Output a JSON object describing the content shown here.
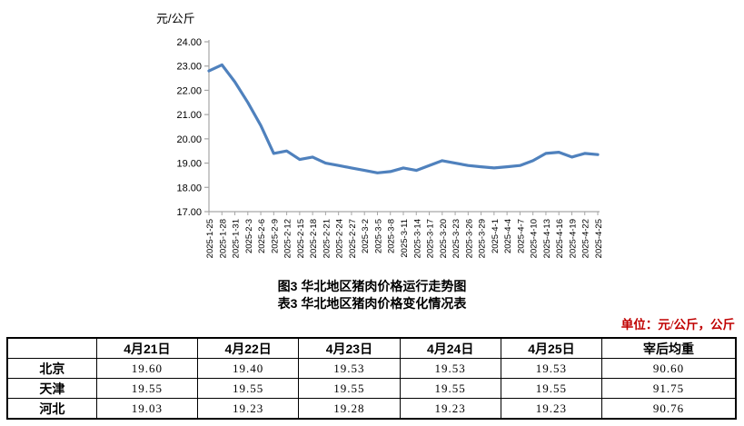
{
  "chart_data": {
    "type": "line",
    "title": "图3 华北地区猪肉价格运行走势图",
    "ylabel": "元/公斤",
    "xlabel": "",
    "ylim": [
      17.0,
      24.0
    ],
    "ytick_step": 1.0,
    "grid": false,
    "legend": false,
    "line_color": "#4F81BD",
    "axis_color": "#A6A6A6",
    "categories": [
      "2025-1-25",
      "2025-1-28",
      "2025-1-31",
      "2025-2-3",
      "2025-2-6",
      "2025-2-9",
      "2025-2-12",
      "2025-2-15",
      "2025-2-18",
      "2025-2-21",
      "2025-2-24",
      "2025-2-27",
      "2025-3-2",
      "2025-3-5",
      "2025-3-8",
      "2025-3-11",
      "2025-3-14",
      "2025-3-17",
      "2025-3-20",
      "2025-3-23",
      "2025-3-26",
      "2025-3-29",
      "2025-4-1",
      "2025-4-4",
      "2025-4-7",
      "2025-4-10",
      "2025-4-13",
      "2025-4-16",
      "2025-4-19",
      "2025-4-22",
      "2025-4-25"
    ],
    "values": [
      22.8,
      23.05,
      22.35,
      21.5,
      20.55,
      19.4,
      19.5,
      19.15,
      19.25,
      19.0,
      18.9,
      18.8,
      18.7,
      18.6,
      18.65,
      18.8,
      18.7,
      18.9,
      19.1,
      19.0,
      18.9,
      18.85,
      18.8,
      18.85,
      18.9,
      19.1,
      19.4,
      19.45,
      19.25,
      19.4,
      19.35
    ]
  },
  "table": {
    "title": "表3 华北地区猪肉价格变化情况表",
    "unit_note": "单位：元/公斤，公斤",
    "unit_color": "#C00000",
    "columns": [
      "",
      "4月21日",
      "4月22日",
      "4月23日",
      "4月24日",
      "4月25日",
      "宰后均重"
    ],
    "rows": [
      {
        "region": "北京",
        "values": [
          "19.60",
          "19.40",
          "19.53",
          "19.53",
          "19.53",
          "90.60"
        ]
      },
      {
        "region": "天津",
        "values": [
          "19.55",
          "19.55",
          "19.55",
          "19.55",
          "19.55",
          "91.75"
        ]
      },
      {
        "region": "河北",
        "values": [
          "19.03",
          "19.23",
          "19.28",
          "19.23",
          "19.23",
          "90.76"
        ]
      }
    ]
  }
}
